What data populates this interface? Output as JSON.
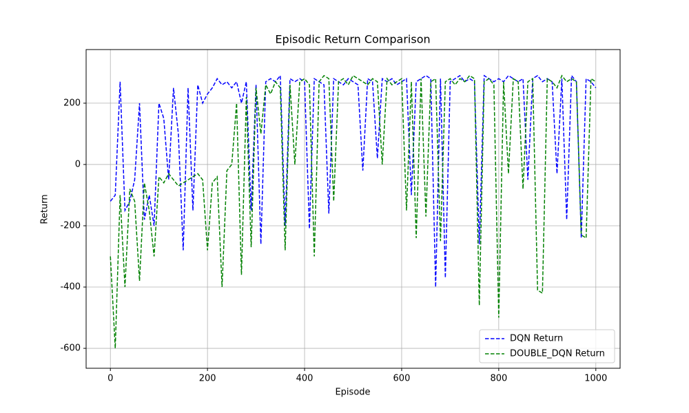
{
  "chart_data": {
    "type": "line",
    "title": "Episodic Return Comparison",
    "x_label": "Episode",
    "y_label": "Return",
    "x": [
      0,
      10,
      20,
      30,
      40,
      50,
      60,
      70,
      80,
      90,
      100,
      110,
      120,
      130,
      140,
      150,
      160,
      170,
      180,
      190,
      200,
      210,
      220,
      230,
      240,
      250,
      260,
      270,
      280,
      290,
      300,
      310,
      320,
      330,
      340,
      350,
      360,
      370,
      380,
      390,
      400,
      410,
      420,
      430,
      440,
      450,
      460,
      470,
      480,
      490,
      500,
      510,
      520,
      530,
      540,
      550,
      560,
      570,
      580,
      590,
      600,
      610,
      620,
      630,
      640,
      650,
      660,
      670,
      680,
      690,
      700,
      710,
      720,
      730,
      740,
      750,
      760,
      770,
      780,
      790,
      800,
      810,
      820,
      830,
      840,
      850,
      860,
      870,
      880,
      890,
      900,
      910,
      920,
      930,
      940,
      950,
      960,
      970,
      980,
      990,
      1000
    ],
    "series": [
      {
        "name": "DQN Return",
        "color": "#0000ff",
        "values": [
          -120,
          -100,
          270,
          -150,
          -120,
          -50,
          200,
          -180,
          -100,
          -200,
          200,
          150,
          -50,
          250,
          100,
          -280,
          250,
          -150,
          260,
          200,
          230,
          250,
          280,
          260,
          270,
          250,
          270,
          200,
          270,
          -150,
          260,
          -260,
          270,
          280,
          270,
          290,
          -200,
          280,
          270,
          280,
          270,
          -210,
          280,
          270,
          260,
          -160,
          280,
          270,
          260,
          280,
          270,
          260,
          -20,
          280,
          270,
          20,
          280,
          270,
          280,
          260,
          270,
          280,
          -100,
          270,
          280,
          290,
          280,
          -400,
          280,
          -370,
          270,
          280,
          290,
          270,
          280,
          270,
          -260,
          290,
          280,
          270,
          280,
          270,
          290,
          280,
          270,
          280,
          -50,
          280,
          290,
          270,
          280,
          270,
          -30,
          280,
          -180,
          290,
          270,
          -240,
          280,
          270,
          250
        ]
      },
      {
        "name": "DOUBLE_DQN Return",
        "color": "#008000",
        "values": [
          -300,
          -600,
          -100,
          -400,
          -80,
          -120,
          -380,
          -60,
          -150,
          -300,
          -40,
          -60,
          -30,
          -50,
          -70,
          -60,
          -50,
          -40,
          -30,
          -50,
          -280,
          -60,
          -40,
          -400,
          -20,
          0,
          200,
          -360,
          220,
          -270,
          250,
          100,
          260,
          230,
          270,
          250,
          -280,
          260,
          0,
          270,
          280,
          260,
          -300,
          270,
          290,
          280,
          -120,
          270,
          280,
          260,
          290,
          280,
          270,
          260,
          280,
          270,
          0,
          280,
          260,
          270,
          280,
          -150,
          270,
          -240,
          280,
          -170,
          270,
          280,
          -250,
          270,
          280,
          260,
          280,
          270,
          290,
          280,
          -460,
          270,
          280,
          260,
          -500,
          270,
          -30,
          280,
          270,
          -80,
          270,
          280,
          -410,
          -420,
          280,
          270,
          250,
          290,
          270,
          280,
          270,
          -230,
          -240,
          280,
          270
        ]
      }
    ],
    "xlim": [
      -50,
      1050
    ],
    "ylim": [
      -665,
      375
    ],
    "xticks": [
      0,
      200,
      400,
      600,
      800,
      1000
    ],
    "yticks": [
      -600,
      -400,
      -200,
      0,
      200
    ],
    "grid": true,
    "legend": "lower right"
  }
}
